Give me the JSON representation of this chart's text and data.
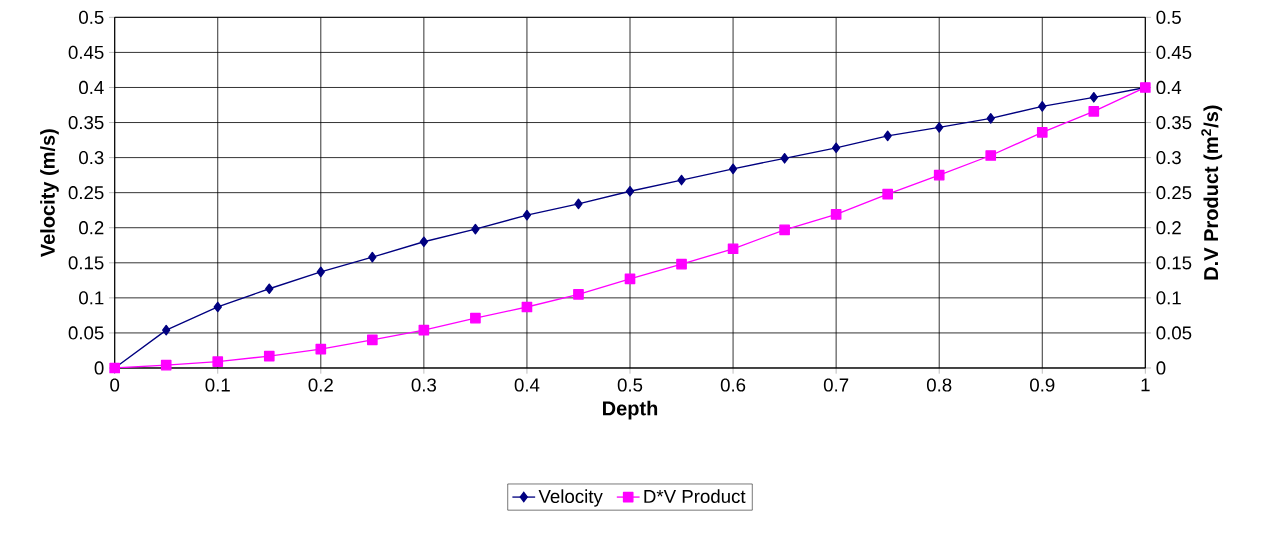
{
  "chart_data": {
    "type": "line",
    "xlabel": "Depth",
    "ylabel": "Velocity (m/s)",
    "y2label": "D.V Product (m$^{2}$/s)",
    "x": [
      0,
      0.05,
      0.1,
      0.15,
      0.2,
      0.25,
      0.3,
      0.35,
      0.4,
      0.45,
      0.5,
      0.55,
      0.6,
      0.65,
      0.7,
      0.75,
      0.8,
      0.85,
      0.9,
      0.95,
      1
    ],
    "series": [
      {
        "name": "Velocity",
        "color": "#000080",
        "marker": "diamond",
        "values": [
          0,
          0.054,
          0.087,
          0.113,
          0.137,
          0.158,
          0.18,
          0.198,
          0.218,
          0.234,
          0.252,
          0.268,
          0.284,
          0.299,
          0.314,
          0.331,
          0.343,
          0.356,
          0.373,
          0.386,
          0.4
        ]
      },
      {
        "name": "D*V Product",
        "color": "#ff00ff",
        "marker": "square",
        "axis": "y2",
        "values": [
          0,
          0.004,
          0.009,
          0.017,
          0.027,
          0.04,
          0.054,
          0.071,
          0.087,
          0.105,
          0.127,
          0.148,
          0.17,
          0.197,
          0.219,
          0.248,
          0.275,
          0.303,
          0.336,
          0.366,
          0.4
        ]
      }
    ],
    "xlim": [
      0,
      1
    ],
    "xticks": [
      0,
      0.1,
      0.2,
      0.3,
      0.4,
      0.5,
      0.6,
      0.7,
      0.8,
      0.9,
      1
    ],
    "ylim": [
      0,
      0.5
    ],
    "yticks": [
      0,
      0.05,
      0.1,
      0.15,
      0.2,
      0.25,
      0.3,
      0.35,
      0.4,
      0.45,
      0.5
    ],
    "y2lim": [
      0,
      0.5
    ],
    "y2ticks": [
      0,
      0.05,
      0.1,
      0.15,
      0.2,
      0.25,
      0.3,
      0.35,
      0.4,
      0.45,
      0.5
    ],
    "grid": true,
    "legend": "bottom",
    "line_style": "solid"
  }
}
